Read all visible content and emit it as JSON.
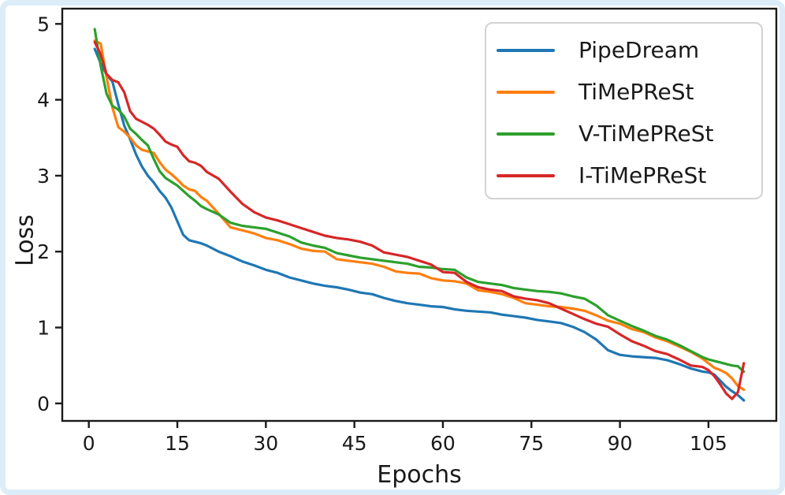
{
  "page": {
    "frame_color": "#dcedf8",
    "plot_background": "#ffffff",
    "axis_color": "#1a1a1a",
    "legend_border_color": "#d2d2d2"
  },
  "chart_data": {
    "type": "line",
    "title": "",
    "xlabel": "Epochs",
    "ylabel": "Loss",
    "xlim": [
      -4.5,
      116.5
    ],
    "ylim": [
      -0.23,
      5.2
    ],
    "xticks": [
      0,
      15,
      30,
      45,
      60,
      75,
      90,
      105
    ],
    "yticks": [
      0,
      1,
      2,
      3,
      4,
      5
    ],
    "grid": false,
    "legend_position": "upper right",
    "epochs": [
      1,
      2,
      3,
      4,
      5,
      6,
      7,
      8,
      9,
      10,
      11,
      12,
      13,
      14,
      15,
      16,
      17,
      18,
      19,
      20,
      22,
      24,
      26,
      28,
      30,
      32,
      34,
      36,
      38,
      40,
      42,
      44,
      46,
      48,
      50,
      52,
      54,
      56,
      58,
      60,
      62,
      64,
      66,
      68,
      70,
      72,
      74,
      76,
      78,
      80,
      82,
      84,
      86,
      88,
      90,
      92,
      94,
      96,
      98,
      100,
      102,
      104,
      105,
      106,
      107,
      108,
      109,
      110,
      111
    ],
    "series": [
      {
        "name": "PipeDream",
        "color": "#1f77b4",
        "values": [
          4.67,
          4.48,
          4.33,
          4.24,
          3.94,
          3.66,
          3.48,
          3.28,
          3.12,
          3.0,
          2.91,
          2.8,
          2.71,
          2.58,
          2.4,
          2.22,
          2.15,
          2.13,
          2.11,
          2.08,
          2.0,
          1.94,
          1.87,
          1.82,
          1.76,
          1.72,
          1.66,
          1.62,
          1.58,
          1.55,
          1.53,
          1.5,
          1.46,
          1.44,
          1.39,
          1.35,
          1.32,
          1.3,
          1.28,
          1.27,
          1.24,
          1.22,
          1.21,
          1.2,
          1.17,
          1.15,
          1.13,
          1.1,
          1.08,
          1.06,
          1.01,
          0.94,
          0.84,
          0.7,
          0.64,
          0.62,
          0.61,
          0.6,
          0.57,
          0.52,
          0.46,
          0.42,
          0.41,
          0.38,
          0.3,
          0.22,
          0.16,
          0.11,
          0.04
        ]
      },
      {
        "name": "TiMePReSt",
        "color": "#ff7f0e",
        "values": [
          4.78,
          4.74,
          4.3,
          3.9,
          3.64,
          3.58,
          3.5,
          3.4,
          3.34,
          3.32,
          3.3,
          3.18,
          3.08,
          3.02,
          2.95,
          2.87,
          2.82,
          2.8,
          2.72,
          2.67,
          2.5,
          2.32,
          2.28,
          2.24,
          2.18,
          2.15,
          2.1,
          2.04,
          2.01,
          2.0,
          1.9,
          1.88,
          1.86,
          1.84,
          1.8,
          1.74,
          1.72,
          1.71,
          1.65,
          1.62,
          1.61,
          1.58,
          1.49,
          1.47,
          1.44,
          1.39,
          1.32,
          1.3,
          1.28,
          1.27,
          1.25,
          1.22,
          1.16,
          1.09,
          1.05,
          0.98,
          0.94,
          0.87,
          0.82,
          0.75,
          0.68,
          0.59,
          0.53,
          0.47,
          0.44,
          0.4,
          0.33,
          0.23,
          0.18
        ]
      },
      {
        "name": "V-TiMePReSt",
        "color": "#2ca02c",
        "values": [
          4.93,
          4.45,
          4.08,
          3.92,
          3.87,
          3.78,
          3.62,
          3.55,
          3.47,
          3.4,
          3.22,
          3.06,
          2.97,
          2.92,
          2.87,
          2.8,
          2.73,
          2.67,
          2.6,
          2.56,
          2.49,
          2.38,
          2.34,
          2.32,
          2.3,
          2.25,
          2.2,
          2.12,
          2.08,
          2.05,
          1.98,
          1.95,
          1.92,
          1.9,
          1.88,
          1.86,
          1.84,
          1.8,
          1.79,
          1.77,
          1.76,
          1.66,
          1.6,
          1.58,
          1.56,
          1.52,
          1.5,
          1.48,
          1.47,
          1.45,
          1.41,
          1.38,
          1.29,
          1.16,
          1.09,
          1.02,
          0.96,
          0.89,
          0.84,
          0.77,
          0.69,
          0.61,
          0.58,
          0.56,
          0.54,
          0.52,
          0.5,
          0.49,
          0.42
        ]
      },
      {
        "name": "I-TiMePReSt",
        "color": "#d62728",
        "values": [
          4.76,
          4.6,
          4.34,
          4.26,
          4.23,
          4.1,
          3.85,
          3.75,
          3.71,
          3.67,
          3.62,
          3.54,
          3.45,
          3.41,
          3.38,
          3.27,
          3.19,
          3.17,
          3.13,
          3.05,
          2.96,
          2.79,
          2.63,
          2.52,
          2.45,
          2.41,
          2.36,
          2.31,
          2.26,
          2.21,
          2.18,
          2.16,
          2.13,
          2.08,
          1.99,
          1.96,
          1.93,
          1.88,
          1.83,
          1.73,
          1.72,
          1.6,
          1.53,
          1.5,
          1.48,
          1.41,
          1.38,
          1.36,
          1.32,
          1.25,
          1.18,
          1.11,
          1.05,
          1.01,
          0.91,
          0.82,
          0.76,
          0.69,
          0.65,
          0.58,
          0.5,
          0.48,
          0.44,
          0.36,
          0.25,
          0.13,
          0.06,
          0.15,
          0.53
        ]
      }
    ]
  }
}
